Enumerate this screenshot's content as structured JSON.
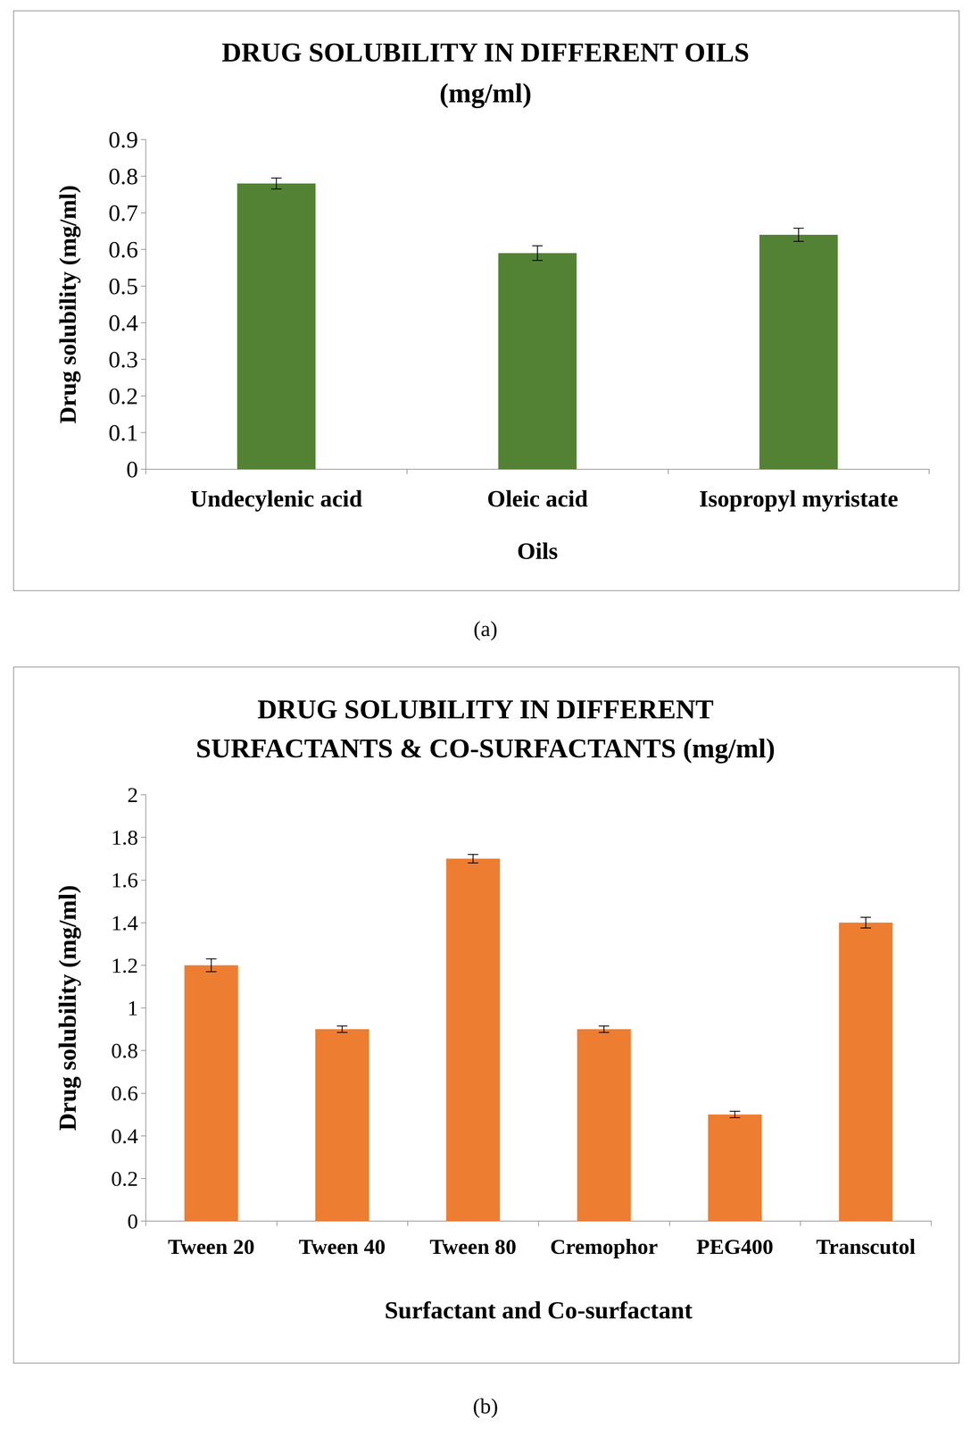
{
  "chart_data": [
    {
      "type": "bar",
      "title": "DRUG SOLUBILITY IN DIFFERENT OILS\n(mg/ml)",
      "x_label": "Oils",
      "y_label": "Drug solubility (mg/ml)",
      "caption": "(a)",
      "categories": [
        "Undecylenic acid",
        "Oleic acid",
        "Isopropyl myristate"
      ],
      "values": [
        0.78,
        0.59,
        0.64
      ],
      "error": [
        0.015,
        0.02,
        0.018
      ],
      "color": "#548235",
      "ylim": [
        0,
        0.9
      ],
      "yticks": [
        0,
        0.1,
        0.2,
        0.3,
        0.4,
        0.5,
        0.6,
        0.7,
        0.8,
        0.9
      ],
      "grid": false
    },
    {
      "type": "bar",
      "title": "DRUG SOLUBILITY IN DIFFERENT\nSURFACTANTS & CO-SURFACTANTS (mg/ml)",
      "x_label": "Surfactant and Co-surfactant",
      "y_label": "Drug solubility (mg/ml)",
      "caption": "(b)",
      "categories": [
        "Tween 20",
        "Tween 40",
        "Tween 80",
        "Cremophor",
        "PEG400",
        "Transcutol"
      ],
      "values": [
        1.2,
        0.9,
        1.7,
        0.9,
        0.5,
        1.4
      ],
      "error": [
        0.03,
        0.015,
        0.02,
        0.015,
        0.015,
        0.025
      ],
      "color": "#ED7D31",
      "ylim": [
        0,
        2
      ],
      "yticks": [
        0,
        0.2,
        0.4,
        0.6,
        0.8,
        1,
        1.2,
        1.4,
        1.6,
        1.8,
        2
      ],
      "grid": false
    }
  ]
}
